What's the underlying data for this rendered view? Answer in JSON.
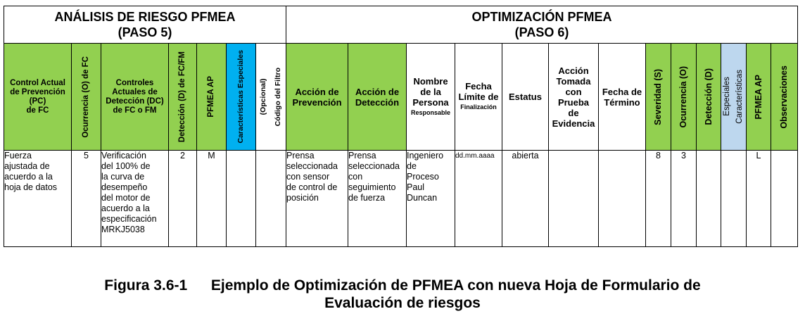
{
  "sections": {
    "left": [
      "ANÁLISIS DE RIESGO PFMEA",
      "(PASO 5)"
    ],
    "right": [
      "OPTIMIZACIÓN PFMEA",
      "(PASO 6)"
    ]
  },
  "headers": {
    "control_prevencion": [
      "Control Actual",
      "de Prevención",
      "(PC)",
      "de FC"
    ],
    "ocurrencia_fc": "Ocurrencia (O) de FC",
    "controles_deteccion": [
      "Controles",
      "Actuales de",
      "Detección (DC)",
      "de FC o FM"
    ],
    "deteccion_fc_fm": "Detección (D) de FC/FM",
    "pfmea_ap_left": "PFMEA AP",
    "caracteristicas_left": "Características Especiales",
    "codigo_filtro": [
      "Código del Filtro",
      "(Opcional)"
    ],
    "accion_prevencion": [
      "Acción de",
      "Prevención"
    ],
    "accion_deteccion": [
      "Acción de",
      "Detección"
    ],
    "nombre_persona": [
      "Nombre",
      "de la",
      "Persona"
    ],
    "responsable": "Responsable",
    "fecha_limite": [
      "Fecha",
      "Límite de"
    ],
    "finalizacion": "Finalización",
    "estatus": "Estatus",
    "accion_tomada": [
      "Acción",
      "Tomada",
      "con",
      "Prueba",
      "de",
      "Evidencia"
    ],
    "fecha_termino": [
      "Fecha de",
      "Término"
    ],
    "severidad": "Severidad (S)",
    "ocurrencia": "Ocurrencia (O)",
    "deteccion": "Detección (D)",
    "caracteristicas_right": [
      "Características",
      "Especiales"
    ],
    "pfmea_ap_right": "PFMEA AP",
    "observaciones": "Observaciones"
  },
  "row": {
    "control_prevencion": [
      "Fuerza",
      "ajustada de",
      "acuerdo a la",
      "hoja de datos"
    ],
    "ocurrencia_fc": "5",
    "controles_deteccion": [
      "Verificación",
      "del 100% de",
      "la curva de",
      "desempeño",
      "del motor de",
      "acuerdo a la",
      "especificación",
      "MRKJ5038"
    ],
    "deteccion_fc_fm": "2",
    "pfmea_ap_left": "M",
    "accion_prevencion": [
      "Prensa",
      "seleccionada",
      "con sensor",
      "de control de",
      "posición"
    ],
    "accion_deteccion": [
      "Prensa",
      "seleccionada",
      "con",
      "seguimiento",
      "de fuerza"
    ],
    "nombre_persona": [
      "Ingeniero",
      "de",
      "Proceso",
      "Paul",
      "Duncan"
    ],
    "fecha_limite": "dd.mm.aaaa",
    "estatus": "abierta",
    "severidad": "8",
    "ocurrencia": "3",
    "pfmea_ap_right": "L"
  },
  "caption": {
    "number": "Figura 3.6-1",
    "title_line1": "Ejemplo de Optimización de PFMEA con nueva Hoja de Formulario de",
    "title_line2": "Evaluación de riesgos"
  },
  "colors": {
    "header_green": "#92d050",
    "special_blue": "#00b0f0",
    "special_light_blue": "#bdd7ee"
  }
}
